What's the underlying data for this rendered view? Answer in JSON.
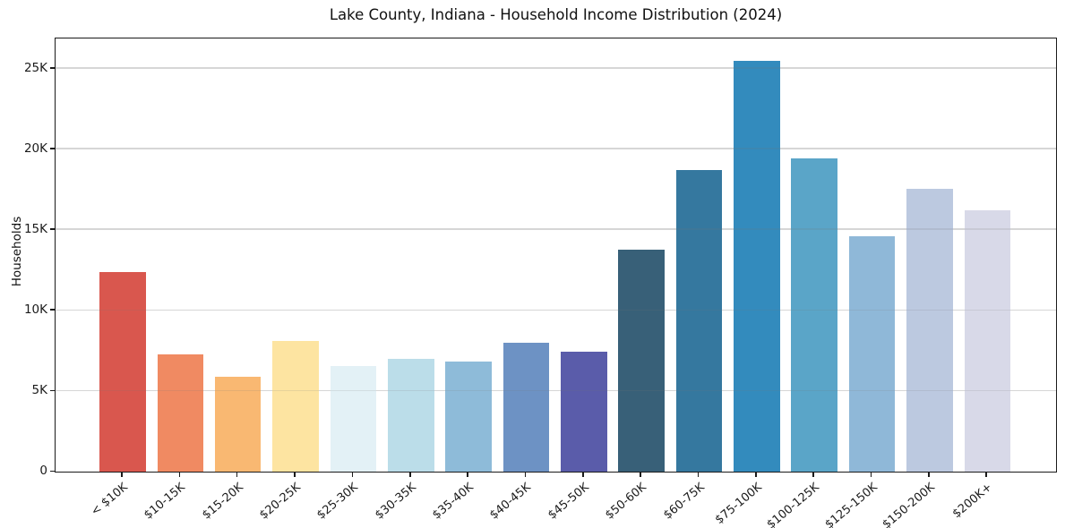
{
  "chart_data": {
    "type": "bar",
    "title": "Lake County, Indiana - Household Income Distribution (2024)",
    "xlabel": "",
    "ylabel": "Households",
    "categories": [
      "< $10K",
      "$10-15K",
      "$15-20K",
      "$20-25K",
      "$25-30K",
      "$30-35K",
      "$35-40K",
      "$40-45K",
      "$45-50K",
      "$50-60K",
      "$60-75K",
      "$75-100K",
      "$100-125K",
      "$125-150K",
      "$150-200K",
      "$200K+"
    ],
    "values": [
      12400,
      7300,
      5900,
      8100,
      6550,
      7000,
      6850,
      8000,
      7450,
      13750,
      18700,
      25500,
      19450,
      14600,
      17550,
      16200
    ],
    "bar_colors": [
      "#d9574e",
      "#f08a62",
      "#f9b872",
      "#fde4a1",
      "#e3f1f6",
      "#bbdde9",
      "#8ebbd9",
      "#6d92c4",
      "#5a5caa",
      "#386078",
      "#35789f",
      "#338bbd",
      "#5aa5c8",
      "#8fb8d8",
      "#bcc9e0",
      "#d8d9e8"
    ],
    "ylim": [
      0,
      26800
    ],
    "yticks": [
      {
        "value": 0,
        "label": "0"
      },
      {
        "value": 5000,
        "label": "5K"
      },
      {
        "value": 10000,
        "label": "10K"
      },
      {
        "value": 15000,
        "label": "15K"
      },
      {
        "value": 20000,
        "label": "20K"
      },
      {
        "value": 25000,
        "label": "25K"
      }
    ],
    "grid": "horizontal",
    "legend": "none",
    "axes_box": true,
    "background_color": "#ffffff",
    "spine_color": "#1a1a1a",
    "gridline_color": "#e9e9e9"
  }
}
